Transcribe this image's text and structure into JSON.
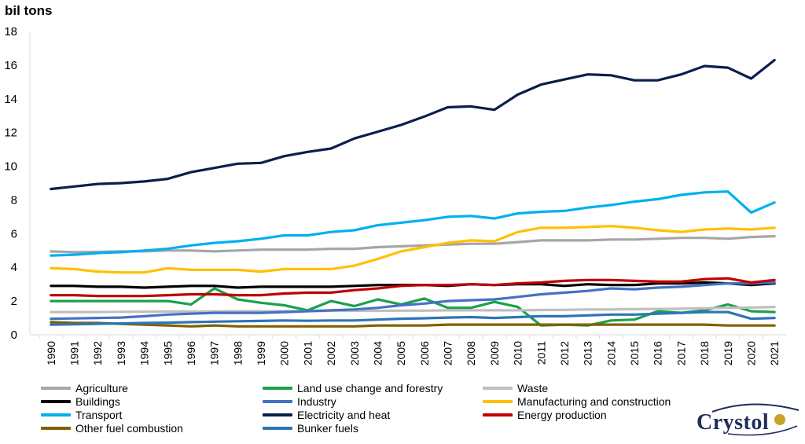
{
  "unit_label": "bil tons",
  "colors": {
    "agriculture": "#a6a6a6",
    "land_use": "#1aa14b",
    "waste": "#bfbfbf",
    "buildings": "#000000",
    "industry": "#4472c4",
    "manufacturing": "#ffc000",
    "transport": "#00b0f0",
    "electricity": "#0b1f4d",
    "energy_production": "#c00000",
    "other_fuel": "#806000",
    "bunker_fuels": "#2e75b6"
  },
  "logo": {
    "text": "Crystol"
  },
  "chart_data": {
    "type": "line",
    "x": [
      "1990",
      "1991",
      "1992",
      "1993",
      "1994",
      "1995",
      "1996",
      "1997",
      "1998",
      "1999",
      "2000",
      "2001",
      "2002",
      "2003",
      "2004",
      "2005",
      "2006",
      "2007",
      "2008",
      "2009",
      "2010",
      "2011",
      "2012",
      "2013",
      "2014",
      "2015",
      "2016",
      "2017",
      "2018",
      "2019",
      "2020",
      "2021"
    ],
    "ylim": [
      0,
      18
    ],
    "yticks": [
      "0",
      "2",
      "4",
      "6",
      "8",
      "10",
      "12",
      "14",
      "16",
      "18"
    ],
    "grid": false,
    "legend_position": "bottom",
    "series": [
      {
        "name": "Agriculture",
        "color": "#a6a6a6",
        "values": [
          4.95,
          4.9,
          4.92,
          4.95,
          4.95,
          5.0,
          5.0,
          4.95,
          5.0,
          5.05,
          5.05,
          5.05,
          5.1,
          5.1,
          5.2,
          5.25,
          5.3,
          5.35,
          5.4,
          5.4,
          5.5,
          5.6,
          5.6,
          5.6,
          5.65,
          5.65,
          5.7,
          5.75,
          5.75,
          5.7,
          5.8,
          5.85
        ]
      },
      {
        "name": "Land use change and forestry",
        "color": "#1aa14b",
        "values": [
          2.0,
          2.0,
          2.0,
          2.0,
          2.0,
          2.0,
          1.8,
          2.75,
          2.1,
          1.9,
          1.75,
          1.45,
          2.0,
          1.7,
          2.1,
          1.8,
          2.15,
          1.6,
          1.6,
          1.95,
          1.65,
          0.55,
          0.6,
          0.55,
          0.85,
          0.9,
          1.4,
          1.3,
          1.45,
          1.8,
          1.4,
          1.35
        ]
      },
      {
        "name": "Waste",
        "color": "#bfbfbf",
        "values": [
          1.35,
          1.35,
          1.35,
          1.36,
          1.37,
          1.38,
          1.38,
          1.38,
          1.4,
          1.4,
          1.4,
          1.4,
          1.42,
          1.42,
          1.42,
          1.43,
          1.43,
          1.45,
          1.45,
          1.45,
          1.45,
          1.47,
          1.48,
          1.5,
          1.5,
          1.52,
          1.53,
          1.55,
          1.57,
          1.6,
          1.62,
          1.65
        ]
      },
      {
        "name": "Buildings",
        "color": "#000000",
        "values": [
          2.9,
          2.9,
          2.85,
          2.85,
          2.8,
          2.85,
          2.9,
          2.9,
          2.8,
          2.85,
          2.85,
          2.85,
          2.85,
          2.9,
          2.95,
          2.95,
          2.95,
          2.9,
          3.0,
          2.95,
          3.0,
          3.0,
          2.9,
          3.0,
          2.95,
          2.95,
          3.05,
          3.05,
          3.1,
          3.05,
          2.95,
          3.05
        ]
      },
      {
        "name": "Industry",
        "color": "#4472c4",
        "values": [
          0.95,
          0.97,
          1.0,
          1.02,
          1.1,
          1.2,
          1.25,
          1.3,
          1.3,
          1.3,
          1.35,
          1.4,
          1.45,
          1.5,
          1.6,
          1.75,
          1.85,
          2.0,
          2.05,
          2.1,
          2.25,
          2.4,
          2.5,
          2.6,
          2.75,
          2.7,
          2.8,
          2.85,
          2.95,
          3.05,
          3.05,
          3.1
        ]
      },
      {
        "name": "Manufacturing and construction",
        "color": "#ffc000",
        "values": [
          3.95,
          3.9,
          3.75,
          3.7,
          3.7,
          3.95,
          3.85,
          3.85,
          3.85,
          3.75,
          3.9,
          3.9,
          3.9,
          4.1,
          4.5,
          4.95,
          5.2,
          5.45,
          5.6,
          5.55,
          6.1,
          6.35,
          6.35,
          6.4,
          6.45,
          6.35,
          6.2,
          6.1,
          6.25,
          6.3,
          6.25,
          6.35
        ]
      },
      {
        "name": "Transport",
        "color": "#00b0f0",
        "values": [
          4.7,
          4.75,
          4.85,
          4.9,
          5.0,
          5.1,
          5.3,
          5.45,
          5.55,
          5.7,
          5.9,
          5.9,
          6.1,
          6.2,
          6.5,
          6.65,
          6.8,
          7.0,
          7.05,
          6.9,
          7.2,
          7.3,
          7.35,
          7.55,
          7.7,
          7.9,
          8.05,
          8.3,
          8.45,
          8.5,
          7.25,
          7.85
        ]
      },
      {
        "name": "Electricity and heat",
        "color": "#0b1f4d",
        "values": [
          8.65,
          8.8,
          8.95,
          9.0,
          9.1,
          9.25,
          9.65,
          9.9,
          10.15,
          10.2,
          10.6,
          10.85,
          11.05,
          11.65,
          12.05,
          12.45,
          12.95,
          13.5,
          13.55,
          13.35,
          14.25,
          14.85,
          15.15,
          15.45,
          15.4,
          15.1,
          15.1,
          15.45,
          15.95,
          15.85,
          15.2,
          16.3
        ]
      },
      {
        "name": "Energy production",
        "color": "#c00000",
        "values": [
          2.35,
          2.35,
          2.3,
          2.3,
          2.3,
          2.35,
          2.4,
          2.4,
          2.35,
          2.35,
          2.45,
          2.5,
          2.5,
          2.65,
          2.75,
          2.9,
          2.95,
          2.95,
          3.0,
          2.95,
          3.05,
          3.1,
          3.2,
          3.25,
          3.25,
          3.2,
          3.15,
          3.15,
          3.3,
          3.35,
          3.1,
          3.25
        ]
      },
      {
        "name": "Other fuel combustion",
        "color": "#806000",
        "values": [
          0.75,
          0.7,
          0.7,
          0.65,
          0.6,
          0.55,
          0.5,
          0.55,
          0.5,
          0.5,
          0.5,
          0.5,
          0.5,
          0.5,
          0.55,
          0.55,
          0.55,
          0.6,
          0.6,
          0.6,
          0.6,
          0.6,
          0.6,
          0.6,
          0.6,
          0.6,
          0.6,
          0.6,
          0.6,
          0.55,
          0.55,
          0.55
        ]
      },
      {
        "name": "Bunker fuels",
        "color": "#2e75b6",
        "values": [
          0.6,
          0.62,
          0.65,
          0.67,
          0.7,
          0.72,
          0.75,
          0.78,
          0.8,
          0.82,
          0.85,
          0.83,
          0.85,
          0.85,
          0.9,
          0.95,
          0.98,
          1.02,
          1.05,
          1.0,
          1.05,
          1.1,
          1.1,
          1.15,
          1.2,
          1.2,
          1.25,
          1.3,
          1.35,
          1.35,
          0.95,
          1.0
        ]
      }
    ]
  }
}
